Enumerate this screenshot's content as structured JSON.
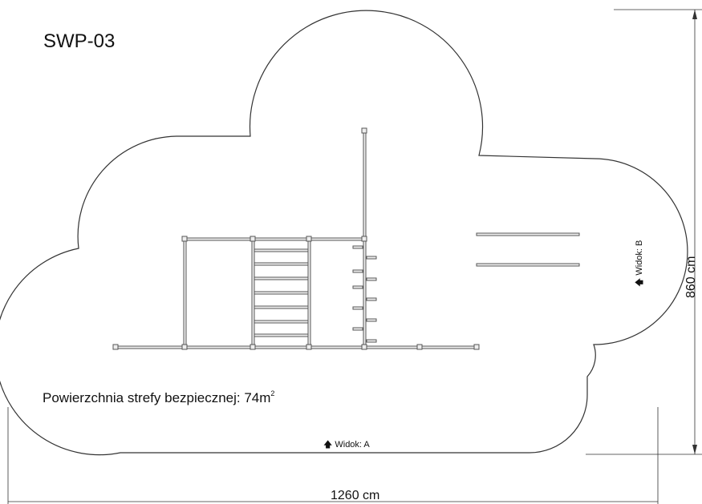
{
  "drawing": {
    "title": "SWP-03",
    "area_label": "Powierzchnia strefy bezpiecznej: 74m",
    "area_sup": "2",
    "view_a": "🡅 Widok: A",
    "view_b": "🡅 Widok: B",
    "width_label": "1260 cm",
    "height_label": "860 cm"
  }
}
